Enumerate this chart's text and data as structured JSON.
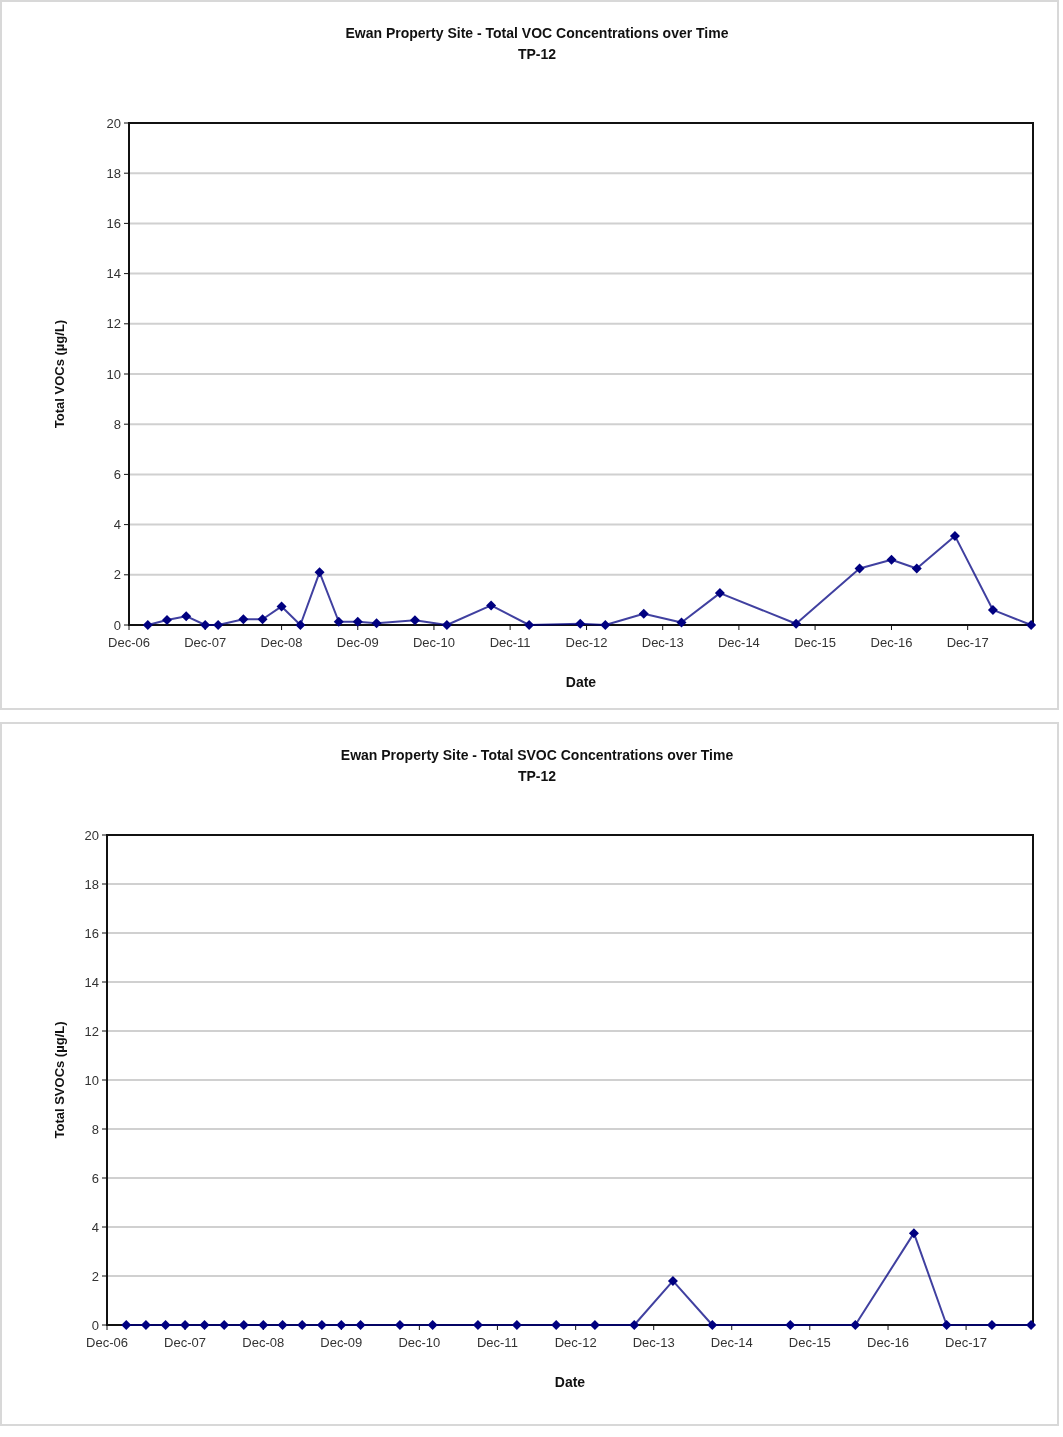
{
  "chart_data": [
    {
      "type": "line",
      "title": "Ewan Property Site - Total VOC Concentrations over Time",
      "subtitle": "TP-12",
      "xlabel": "Date",
      "ylabel": "Total VOCs (µg/L)",
      "x": [
        "2007-03",
        "2007-06",
        "2007-09",
        "2007-12",
        "2008-02",
        "2008-06",
        "2008-09",
        "2008-12",
        "2009-03",
        "2009-06",
        "2009-09",
        "2009-12",
        "2010-03",
        "2010-09",
        "2011-02",
        "2011-09",
        "2012-03",
        "2012-11",
        "2013-03",
        "2013-09",
        "2014-03",
        "2014-09",
        "2015-09",
        "2016-07",
        "2016-12",
        "2017-04",
        "2017-10",
        "2018-04",
        "2018-10"
      ],
      "series": [
        {
          "color": "#000080",
          "values": [
            0,
            0.2,
            0.35,
            0,
            0,
            0.23,
            0.23,
            0.74,
            0,
            2.1,
            0.13,
            0.13,
            0.07,
            0.19,
            0,
            0.78,
            0,
            0.05,
            0,
            0.45,
            0.1,
            1.27,
            0.05,
            2.25,
            2.6,
            2.25,
            3.55,
            0.6,
            0
          ]
        }
      ],
      "xlim": [
        "2006-12-01",
        "2018-10-10"
      ],
      "xticks": [
        {
          "value": "2006-12",
          "label": "Dec-06"
        },
        {
          "value": "2007-12",
          "label": "Dec-07"
        },
        {
          "value": "2008-12",
          "label": "Dec-08"
        },
        {
          "value": "2009-12",
          "label": "Dec-09"
        },
        {
          "value": "2010-12",
          "label": "Dec-10"
        },
        {
          "value": "2011-12",
          "label": "Dec-11"
        },
        {
          "value": "2012-12",
          "label": "Dec-12"
        },
        {
          "value": "2013-12",
          "label": "Dec-13"
        },
        {
          "value": "2014-12",
          "label": "Dec-14"
        },
        {
          "value": "2015-12",
          "label": "Dec-15"
        },
        {
          "value": "2016-12",
          "label": "Dec-16"
        },
        {
          "value": "2017-12",
          "label": "Dec-17"
        }
      ],
      "ylim": [
        0,
        20
      ],
      "yticks": [
        0,
        2,
        4,
        6,
        8,
        10,
        12,
        14,
        16,
        18,
        20
      ],
      "grid": "y",
      "marker": "diamond",
      "line_style": "solid"
    },
    {
      "type": "line",
      "title": "Ewan Property Site - Total SVOC Concentrations over Time",
      "subtitle": "TP-12",
      "xlabel": "Date",
      "ylabel": "Total SVOCs (µg/L)",
      "x": [
        "2007-03",
        "2007-06",
        "2007-09",
        "2007-12",
        "2008-03",
        "2008-06",
        "2008-09",
        "2008-12",
        "2009-03",
        "2009-06",
        "2009-09",
        "2009-12",
        "2010-03",
        "2010-09",
        "2011-02",
        "2011-09",
        "2012-03",
        "2012-09",
        "2013-03",
        "2013-09",
        "2014-03",
        "2014-09",
        "2015-09",
        "2016-07",
        "2017-04",
        "2017-09",
        "2018-04",
        "2018-10"
      ],
      "series": [
        {
          "color": "#000080",
          "values": [
            0,
            0,
            0,
            0,
            0,
            0,
            0,
            0,
            0,
            0,
            0,
            0,
            0,
            0,
            0,
            0,
            0,
            0,
            0,
            0,
            1.8,
            0,
            0,
            0,
            3.75,
            0,
            0,
            0
          ]
        }
      ],
      "xlim": [
        "2006-12-01",
        "2018-10-10"
      ],
      "xticks": [
        {
          "value": "2006-12",
          "label": "Dec-06"
        },
        {
          "value": "2007-12",
          "label": "Dec-07"
        },
        {
          "value": "2008-12",
          "label": "Dec-08"
        },
        {
          "value": "2009-12",
          "label": "Dec-09"
        },
        {
          "value": "2010-12",
          "label": "Dec-10"
        },
        {
          "value": "2011-12",
          "label": "Dec-11"
        },
        {
          "value": "2012-12",
          "label": "Dec-12"
        },
        {
          "value": "2013-12",
          "label": "Dec-13"
        },
        {
          "value": "2014-12",
          "label": "Dec-14"
        },
        {
          "value": "2015-12",
          "label": "Dec-15"
        },
        {
          "value": "2016-12",
          "label": "Dec-16"
        },
        {
          "value": "2017-12",
          "label": "Dec-17"
        }
      ],
      "ylim": [
        0,
        20
      ],
      "yticks": [
        0,
        2,
        4,
        6,
        8,
        10,
        12,
        14,
        16,
        18,
        20
      ],
      "grid": "y",
      "marker": "diamond",
      "line_style": "solid"
    }
  ]
}
